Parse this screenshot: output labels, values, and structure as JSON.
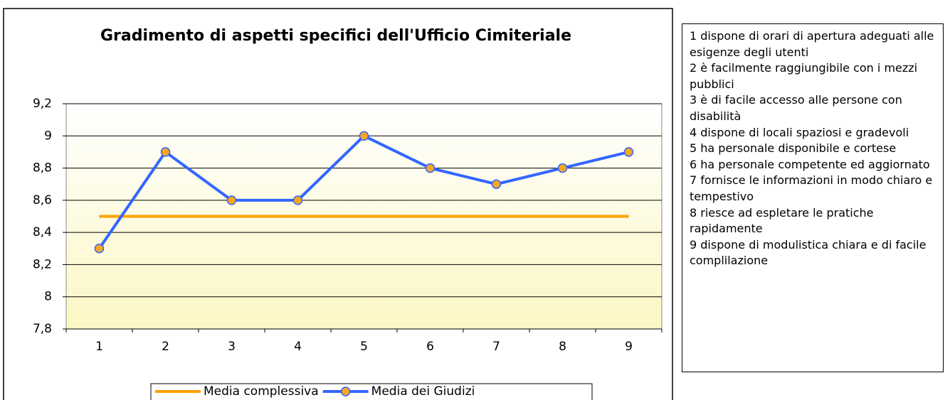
{
  "chart_data": {
    "type": "line",
    "title": "Gradimento di aspetti specifici dell'Ufficio Cimiteriale",
    "categories": [
      "1",
      "2",
      "3",
      "4",
      "5",
      "6",
      "7",
      "8",
      "9"
    ],
    "series": [
      {
        "name": "Media complessiva",
        "color": "#ffa000",
        "marker": false,
        "values": [
          8.5,
          8.5,
          8.5,
          8.5,
          8.5,
          8.5,
          8.5,
          8.5,
          8.5
        ]
      },
      {
        "name": "Media dei Giudizi",
        "color": "#3366ff",
        "marker": true,
        "marker_color": "#f5a623",
        "values": [
          8.3,
          8.9,
          8.6,
          8.6,
          9.0,
          8.8,
          8.7,
          8.8,
          8.9
        ]
      }
    ],
    "ylim": [
      7.8,
      9.2
    ],
    "yticks": [
      {
        "value": 7.8,
        "label": "7,8"
      },
      8,
      {
        "value": 8.2,
        "label": "8,2"
      },
      {
        "value": 8.4,
        "label": "8,4"
      },
      {
        "value": 8.6,
        "label": "8,6"
      },
      {
        "value": 8.8,
        "label": "8,8"
      },
      9,
      {
        "value": 9.2,
        "label": "9,2"
      }
    ],
    "grid": true,
    "legend": "bottom"
  },
  "notes": [
    "1 dispone di orari di apertura adeguati alle esigenze degli utenti",
    "2 è facilmente raggiungibile con i mezzi pubblici",
    "3 è di facile accesso alle persone con disabilità",
    "4 dispone di locali spaziosi e gradevoli",
    "5 ha personale disponibile e cortese",
    "6 ha personale competente ed aggiornato",
    "7 fornisce le informazioni in modo chiaro e tempestivo",
    "8 riesce ad espletare le pratiche rapidamente",
    "9 dispone di modulistica chiara e di facile complilazione"
  ]
}
